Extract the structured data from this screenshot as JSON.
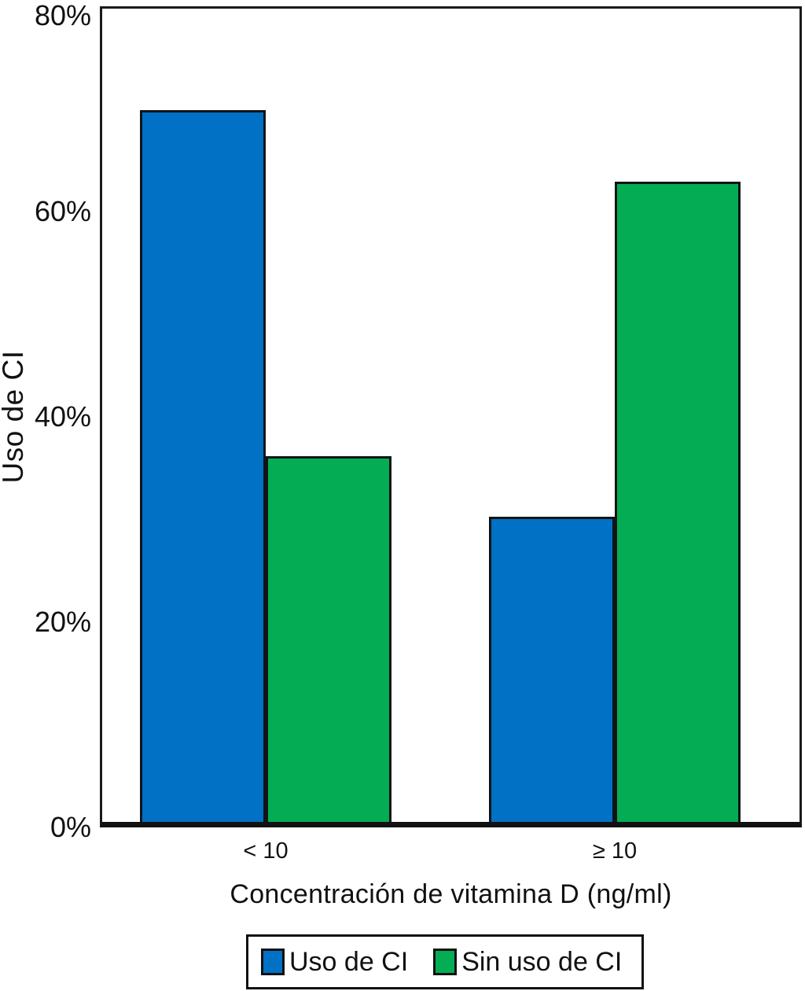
{
  "chart_data": {
    "type": "bar",
    "title": "",
    "categories": [
      "< 10",
      "≥ 10"
    ],
    "series": [
      {
        "name": "Uso de CI",
        "color": "#0071c5",
        "values": [
          70,
          30
        ]
      },
      {
        "name": "Sin uso de CI",
        "color": "#04ad53",
        "values": [
          36,
          63
        ]
      }
    ],
    "xlabel": "Concentración de vitamina D (ng/ml)",
    "ylabel": "Uso de CI",
    "ylim": [
      0,
      80
    ],
    "yticks": [
      {
        "value": 0,
        "label": "0%"
      },
      {
        "value": 20,
        "label": "20%"
      },
      {
        "value": 40,
        "label": "40%"
      },
      {
        "value": 60,
        "label": "60%"
      },
      {
        "value": 80,
        "label": "80%"
      }
    ],
    "grid": false,
    "legend_position": "bottom",
    "colors": {
      "axis": "#111111",
      "background": "#ffffff"
    }
  }
}
